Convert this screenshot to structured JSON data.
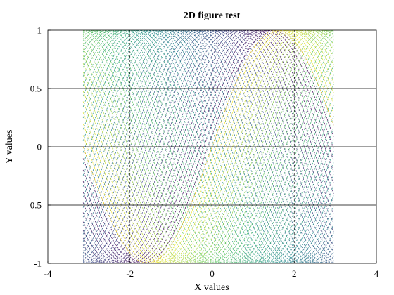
{
  "chart_data": {
    "type": "line",
    "title": "2D figure test",
    "xlabel": "X values",
    "ylabel": "Y values",
    "xlim": [
      -4,
      4
    ],
    "ylim": [
      -1,
      1
    ],
    "xticks": [
      "-4",
      "-2",
      "0",
      "2",
      "4"
    ],
    "yticks": [
      "-1",
      "-0.5",
      "0",
      "0.5",
      "1"
    ],
    "grid": true,
    "colormap": "viridis",
    "colormap_stops": [
      "#440154",
      "#3b528b",
      "#21918c",
      "#5ec962",
      "#fde725"
    ],
    "series_formula": "y = sin(x + phase)",
    "x_range": [
      -3.14159,
      3.04159
    ],
    "x_step": 0.1,
    "phase_range": [
      0,
      6.2832
    ],
    "series_count": 64,
    "line_style": "dashed"
  }
}
